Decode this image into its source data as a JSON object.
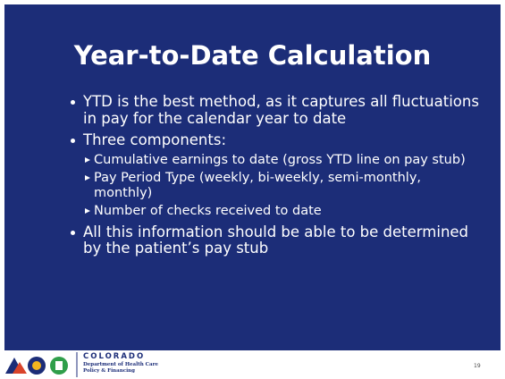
{
  "title": "Year-to-Date Calculation",
  "bullets": [
    {
      "text": "YTD is the best method, as it captures all fluctuations in pay for the calendar year to date",
      "sub": []
    },
    {
      "text": "Three components:",
      "sub": [
        "Cumulative earnings to date (gross YTD line on pay stub)",
        "Pay Period Type (weekly, bi-weekly, semi-monthly, monthly)",
        "Number of checks received to date"
      ]
    },
    {
      "text": "All this information should be able to be determined by the patient’s pay stub",
      "sub": []
    }
  ],
  "footer": {
    "org": "COLORADO",
    "department": "Department of Health Care",
    "division": "Policy & Financing",
    "page_number": 19
  }
}
